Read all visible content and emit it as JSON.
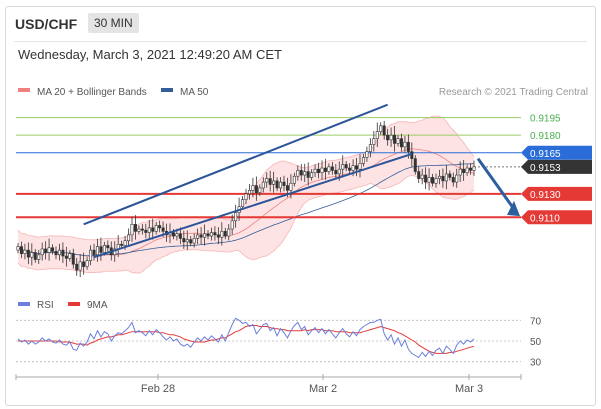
{
  "header": {
    "symbol": "USD/CHF",
    "timeframe": "30 MIN"
  },
  "timestamp": "Wednesday, March 3, 2021 12:49:20 AM CET",
  "legend": {
    "bollinger": "MA 20 + Bollinger Bands",
    "ma50": "MA 50"
  },
  "credit": "Research © 2021 Trading Central",
  "colors": {
    "bollinger": "#f08080",
    "band_fill": "#fde3e3",
    "ma50": "#335c99",
    "channel": "#2c5499",
    "level_green": "#9ccc65",
    "level_green_text": "#4caf50",
    "level_blue": "#2a6dd9",
    "level_red": "#e53935",
    "level_dark": "#333333",
    "rsi": "#6a7fdb",
    "ma9": "#e53935",
    "candle": "#333333",
    "arrow": "#2c5f9e"
  },
  "chart_data": [
    {
      "type": "candlestick",
      "title": "USD/CHF 30 MIN",
      "x_ticks": [
        "Feb 28",
        "Mar 2",
        "Mar 3"
      ],
      "ylim": [
        0.9048,
        0.921
      ],
      "levels": [
        {
          "value": 0.9195,
          "label": "0.9195",
          "style": "resistance-minor"
        },
        {
          "value": 0.918,
          "label": "0.9180",
          "style": "resistance-minor"
        },
        {
          "value": 0.9165,
          "label": "0.9165",
          "style": "pivot"
        },
        {
          "value": 0.9153,
          "label": "0.9153",
          "style": "last-price"
        },
        {
          "value": 0.913,
          "label": "0.9130",
          "style": "support"
        },
        {
          "value": 0.911,
          "label": "0.9110",
          "style": "support"
        }
      ],
      "closes": [
        0.9085,
        0.9079,
        0.9082,
        0.9076,
        0.908,
        0.9074,
        0.9078,
        0.9083,
        0.908,
        0.9084,
        0.9081,
        0.9078,
        0.9082,
        0.9077,
        0.9075,
        0.9079,
        0.907,
        0.9065,
        0.9072,
        0.9068,
        0.9073,
        0.9082,
        0.9078,
        0.9085,
        0.908,
        0.9086,
        0.9084,
        0.9078,
        0.9083,
        0.9087,
        0.9086,
        0.909,
        0.9095,
        0.9104,
        0.9098,
        0.91,
        0.9099,
        0.9097,
        0.9101,
        0.9098,
        0.9103,
        0.9101,
        0.9098,
        0.9095,
        0.9097,
        0.9094,
        0.9096,
        0.9092,
        0.9089,
        0.9091,
        0.9088,
        0.9092,
        0.9095,
        0.9093,
        0.9096,
        0.9094,
        0.9097,
        0.9095,
        0.9093,
        0.9098,
        0.9094,
        0.91,
        0.9107,
        0.9114,
        0.9119,
        0.9125,
        0.913,
        0.9133,
        0.9137,
        0.9131,
        0.9135,
        0.914,
        0.9143,
        0.9138,
        0.9141,
        0.9135,
        0.914,
        0.9137,
        0.9133,
        0.9139,
        0.9145,
        0.915,
        0.9146,
        0.9149,
        0.9144,
        0.9148,
        0.9151,
        0.9148,
        0.9152,
        0.9149,
        0.9153,
        0.915,
        0.9147,
        0.9151,
        0.9155,
        0.9152,
        0.915,
        0.9154,
        0.9151,
        0.9156,
        0.9161,
        0.9166,
        0.9172,
        0.9177,
        0.9183,
        0.9188,
        0.918,
        0.9176,
        0.918,
        0.9173,
        0.9177,
        0.917,
        0.9174,
        0.9166,
        0.916,
        0.9149,
        0.9143,
        0.9146,
        0.914,
        0.9144,
        0.9139,
        0.9143,
        0.9145,
        0.9141,
        0.9147,
        0.9144,
        0.914,
        0.9146,
        0.9151,
        0.9148,
        0.9152,
        0.915,
        0.9153
      ],
      "legend": [
        "MA 20 + Bollinger Bands",
        "MA 50"
      ]
    },
    {
      "type": "line",
      "title": "RSI",
      "series": [
        {
          "name": "RSI"
        },
        {
          "name": "9MA"
        }
      ],
      "y_ticks": [
        70,
        50,
        30
      ],
      "ylim": [
        20,
        80
      ],
      "rsi": [
        52,
        49,
        51,
        47,
        50,
        47,
        49,
        53,
        50,
        52,
        49,
        48,
        51,
        47,
        46,
        49,
        42,
        41,
        48,
        45,
        49,
        57,
        52,
        60,
        54,
        59,
        57,
        50,
        55,
        58,
        57,
        60,
        63,
        68,
        58,
        60,
        58,
        55,
        60,
        56,
        61,
        58,
        54,
        51,
        54,
        50,
        52,
        47,
        45,
        47,
        44,
        49,
        53,
        50,
        54,
        51,
        55,
        52,
        49,
        56,
        50,
        58,
        66,
        72,
        70,
        67,
        68,
        64,
        66,
        57,
        61,
        66,
        67,
        60,
        63,
        55,
        62,
        58,
        53,
        60,
        65,
        68,
        61,
        64,
        56,
        60,
        63,
        58,
        62,
        57,
        61,
        57,
        53,
        58,
        62,
        57,
        54,
        59,
        55,
        61,
        64,
        66,
        68,
        68,
        70,
        71,
        57,
        51,
        56,
        47,
        53,
        45,
        51,
        42,
        38,
        36,
        34,
        39,
        35,
        40,
        36,
        41,
        43,
        38,
        45,
        42,
        38,
        46,
        50,
        47,
        51,
        49,
        52
      ],
      "ma9": [
        50,
        50,
        50,
        50,
        50,
        50,
        50,
        50,
        50,
        50,
        50,
        50,
        49,
        49,
        49,
        49,
        48,
        47,
        47,
        47,
        46,
        48,
        49,
        51,
        52,
        53,
        54,
        54,
        55,
        56,
        56,
        57,
        58,
        59,
        59,
        59,
        59,
        59,
        59,
        59,
        59,
        58,
        58,
        57,
        56,
        56,
        55,
        54,
        52,
        51,
        50,
        49,
        49,
        49,
        49,
        50,
        51,
        51,
        52,
        53,
        53,
        55,
        57,
        59,
        60,
        62,
        64,
        65,
        65,
        65,
        64,
        64,
        64,
        63,
        62,
        62,
        61,
        61,
        60,
        60,
        60,
        60,
        60,
        61,
        60,
        61,
        61,
        61,
        61,
        60,
        60,
        60,
        59,
        59,
        59,
        59,
        58,
        58,
        58,
        58,
        59,
        60,
        61,
        62,
        63,
        64,
        63,
        62,
        61,
        60,
        58,
        57,
        55,
        53,
        51,
        49,
        46,
        44,
        42,
        40,
        39,
        38,
        38,
        38,
        38,
        39,
        39,
        40,
        41,
        42,
        43,
        44,
        45
      ]
    }
  ]
}
